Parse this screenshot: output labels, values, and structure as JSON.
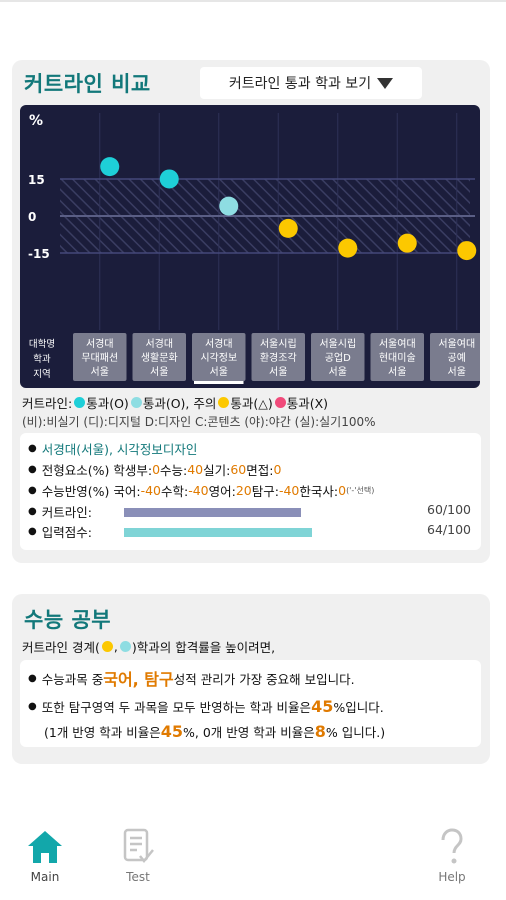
{
  "comparison": {
    "title": "커트라인 비교",
    "dropdown_label": "커트라인 통과 학과 보기",
    "legend": {
      "prefix": "커트라인:",
      "items": [
        "통과(O)",
        "통과(O), 주의",
        "통과(△)",
        "통과(X)"
      ],
      "colors": [
        "#1ecfd8",
        "#8edde2",
        "#fcc800",
        "#f04a7a"
      ],
      "note": "(비):비실기 (디):디지털 D:디자인 C:콘텐츠 (야):야간 (실):실기100%"
    },
    "region_header": [
      "대학명",
      "학과",
      "지역"
    ],
    "selected": {
      "name": "서경대(서울), 시각정보디자인",
      "lines": [
        {
          "label": "전형요소(%) 학생부:",
          "parts": [
            {
              "t": "0",
              "h": true
            },
            {
              "t": " 수능:",
              "h": false
            },
            {
              "t": "40",
              "h": true
            },
            {
              "t": " 실기:",
              "h": false
            },
            {
              "t": "60",
              "h": true
            },
            {
              "t": " 면접:",
              "h": false
            },
            {
              "t": "0",
              "h": true
            }
          ]
        },
        {
          "label": "수능반영(%) 국어:",
          "parts": [
            {
              "t": "-40",
              "h": true
            },
            {
              "t": " 수학:",
              "h": false
            },
            {
              "t": "-40",
              "h": true
            },
            {
              "t": " 영어:",
              "h": false
            },
            {
              "t": "20",
              "h": true
            },
            {
              "t": " 탐구:",
              "h": false
            },
            {
              "t": "-40",
              "h": true
            },
            {
              "t": " 한국사:",
              "h": false
            },
            {
              "t": "0",
              "h": true
            }
          ]
        }
      ],
      "select_note": "('-'선택)",
      "cutline_label": "커트라인:",
      "cutline_value": "60/100",
      "cutline_ratio": 0.6,
      "input_label": "입력점수:",
      "input_value": "64/100",
      "input_ratio": 0.64
    }
  },
  "chart_data": {
    "type": "scatter",
    "ylabel": "%",
    "yticks": [
      "15",
      "0",
      "-15"
    ],
    "ylim": [
      -30,
      35
    ],
    "grid": true,
    "categories": [
      "서경대\n무대패션\n서울",
      "서경대\n생활문화\n서울",
      "서경대\n시각정보\n서울",
      "서울시립\n환경조각\n서울",
      "서울시립\n공업D\n서울",
      "서울여대\n현대미술\n서울",
      "서울여대\n공예\n서울"
    ],
    "values": [
      20,
      15,
      4,
      -5,
      -13,
      -11,
      -14
    ],
    "point_colors": [
      "#1ecfd8",
      "#1ecfd8",
      "#8edde2",
      "#fcc800",
      "#fcc800",
      "#fcc800",
      "#fcc800"
    ],
    "selected_index": 2
  },
  "study": {
    "title": "수능 공부",
    "intro_before": "커트라인 경계(",
    "intro_after": ")학과의 합격률을 높이려면,",
    "intro_colors": [
      "#fcc800",
      "#8edde2"
    ],
    "tip1_pre": "수능과목 중 ",
    "tip1_hl": "국어, 탐구",
    "tip1_post": " 성적 관리가 가장 중요해 보입니다.",
    "tip2_pre": "또한 탐구영역 두 과목을 모두 반영하는 학과 비율은 ",
    "tip2_hl": "45",
    "tip2_post": "%입니다.",
    "tip3_a": "(1개 반영 학과 비율은 ",
    "tip3_b": "45",
    "tip3_c": "%, 0개 반영 학과 비율은",
    "tip3_d": "8",
    "tip3_e": "% 입니다.)"
  },
  "nav": {
    "main": "Main",
    "test": "Test",
    "help": "Help"
  }
}
